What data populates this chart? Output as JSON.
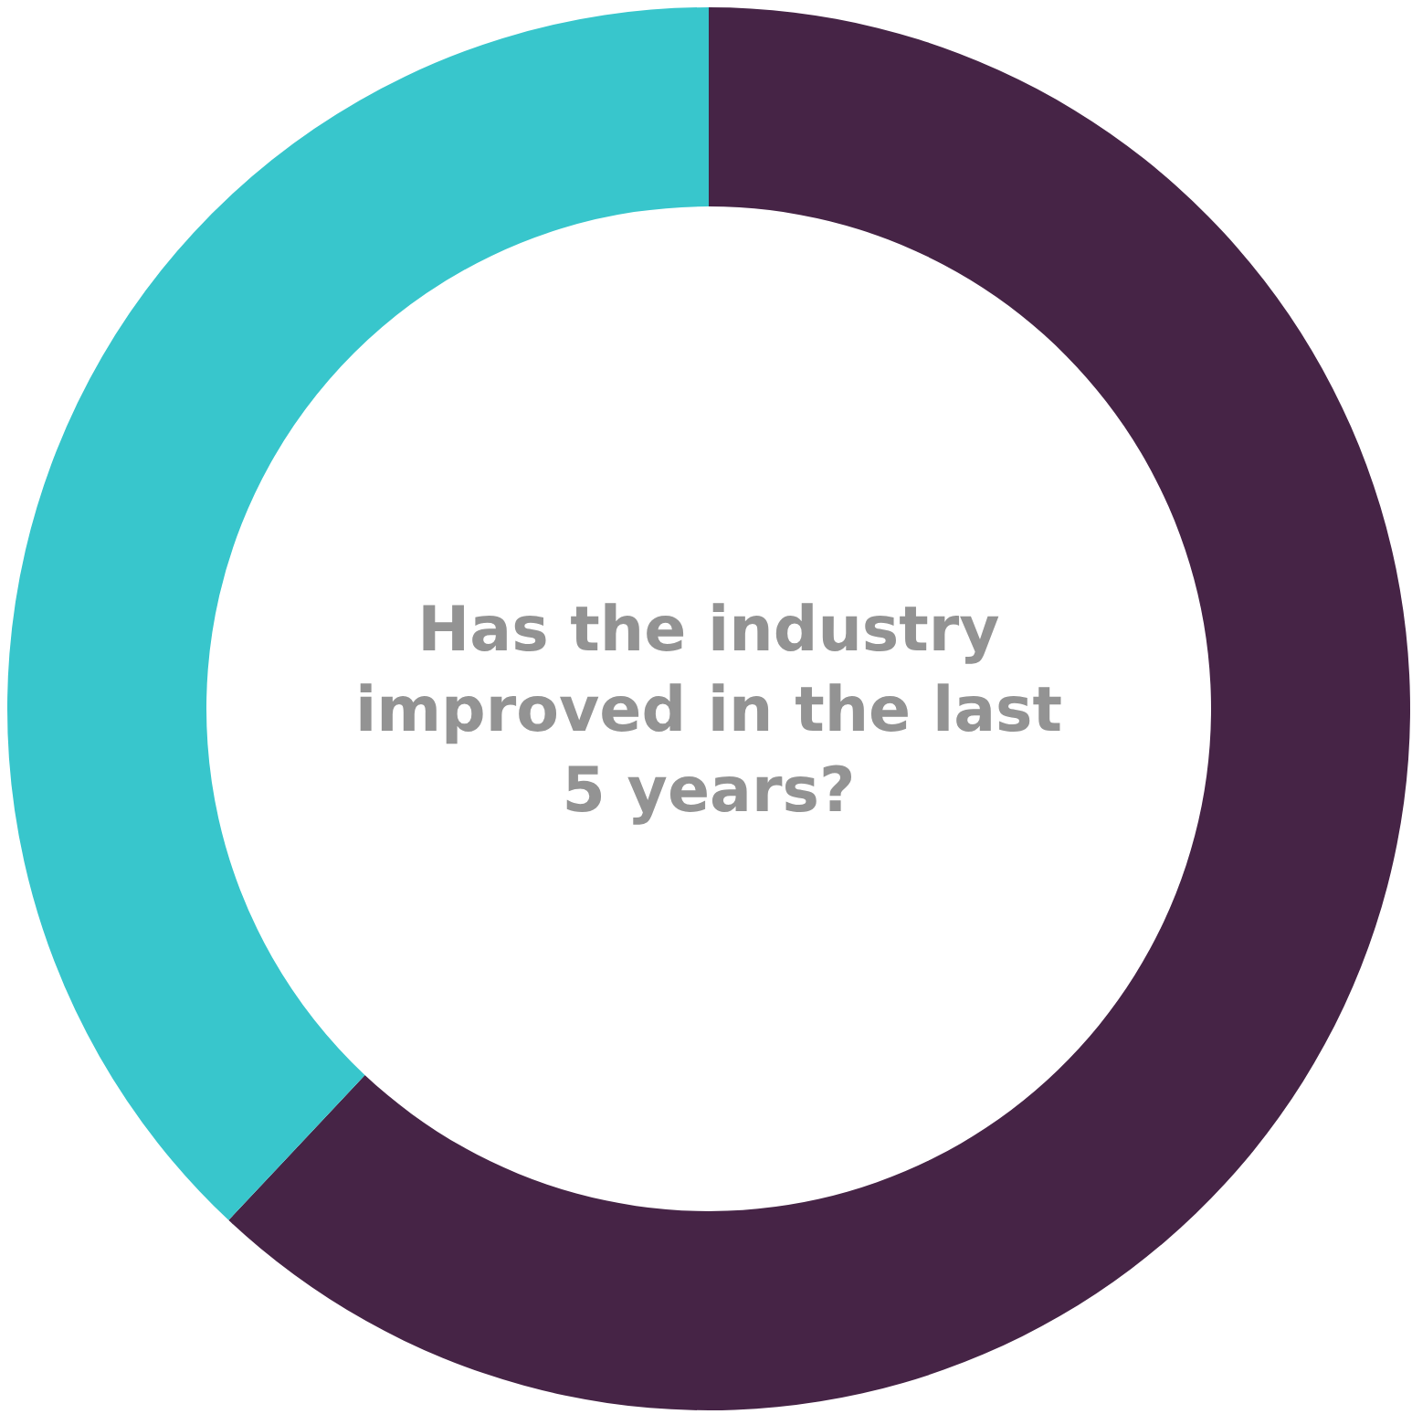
{
  "chart_data": {
    "type": "donut",
    "title": "Has the industry improved in the last 5 years?",
    "categories": [
      null,
      null
    ],
    "values": [
      62,
      38
    ],
    "colors": [
      "#462446",
      "#38c6cc"
    ]
  }
}
